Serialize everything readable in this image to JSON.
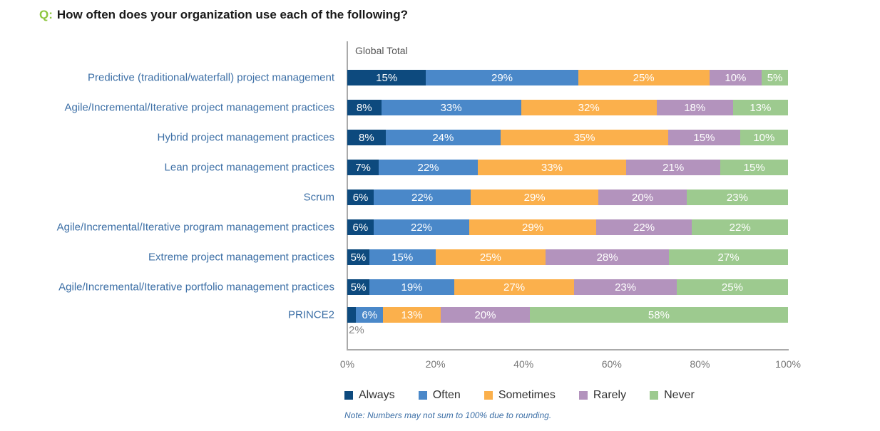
{
  "title": {
    "prefix": "Q:",
    "text": "How often does your organization use each of the following?"
  },
  "chart_data": {
    "type": "bar",
    "orientation": "horizontal-stacked",
    "subtitle": "Global Total",
    "categories": [
      "Predictive (traditional/waterfall) project management",
      "Agile/Incremental/Iterative project management practices",
      "Hybrid project management practices",
      "Lean project management practices",
      "Scrum",
      "Agile/Incremental/Iterative program management practices",
      "Extreme project management practices",
      "Agile/Incremental/Iterative portfolio management practices",
      "PRINCE2"
    ],
    "series": [
      {
        "name": "Always",
        "color": "#0d4a7e",
        "values": [
          15,
          8,
          8,
          7,
          6,
          6,
          5,
          5,
          2
        ]
      },
      {
        "name": "Often",
        "color": "#4a88c9",
        "values": [
          29,
          33,
          24,
          22,
          22,
          22,
          15,
          19,
          6
        ]
      },
      {
        "name": "Sometimes",
        "color": "#fbb04c",
        "values": [
          25,
          32,
          35,
          33,
          29,
          29,
          25,
          27,
          13
        ]
      },
      {
        "name": "Rarely",
        "color": "#b393bd",
        "values": [
          10,
          18,
          15,
          21,
          20,
          22,
          28,
          23,
          20
        ]
      },
      {
        "name": "Never",
        "color": "#9dca8f",
        "values": [
          5,
          13,
          10,
          15,
          23,
          22,
          27,
          25,
          58
        ]
      }
    ],
    "xticks": [
      "0%",
      "20%",
      "40%",
      "60%",
      "80%",
      "100%"
    ],
    "xlim": [
      0,
      100
    ],
    "grid": false,
    "legend": "bottom",
    "note": "Note: Numbers may not sum to 100% due to rounding."
  }
}
